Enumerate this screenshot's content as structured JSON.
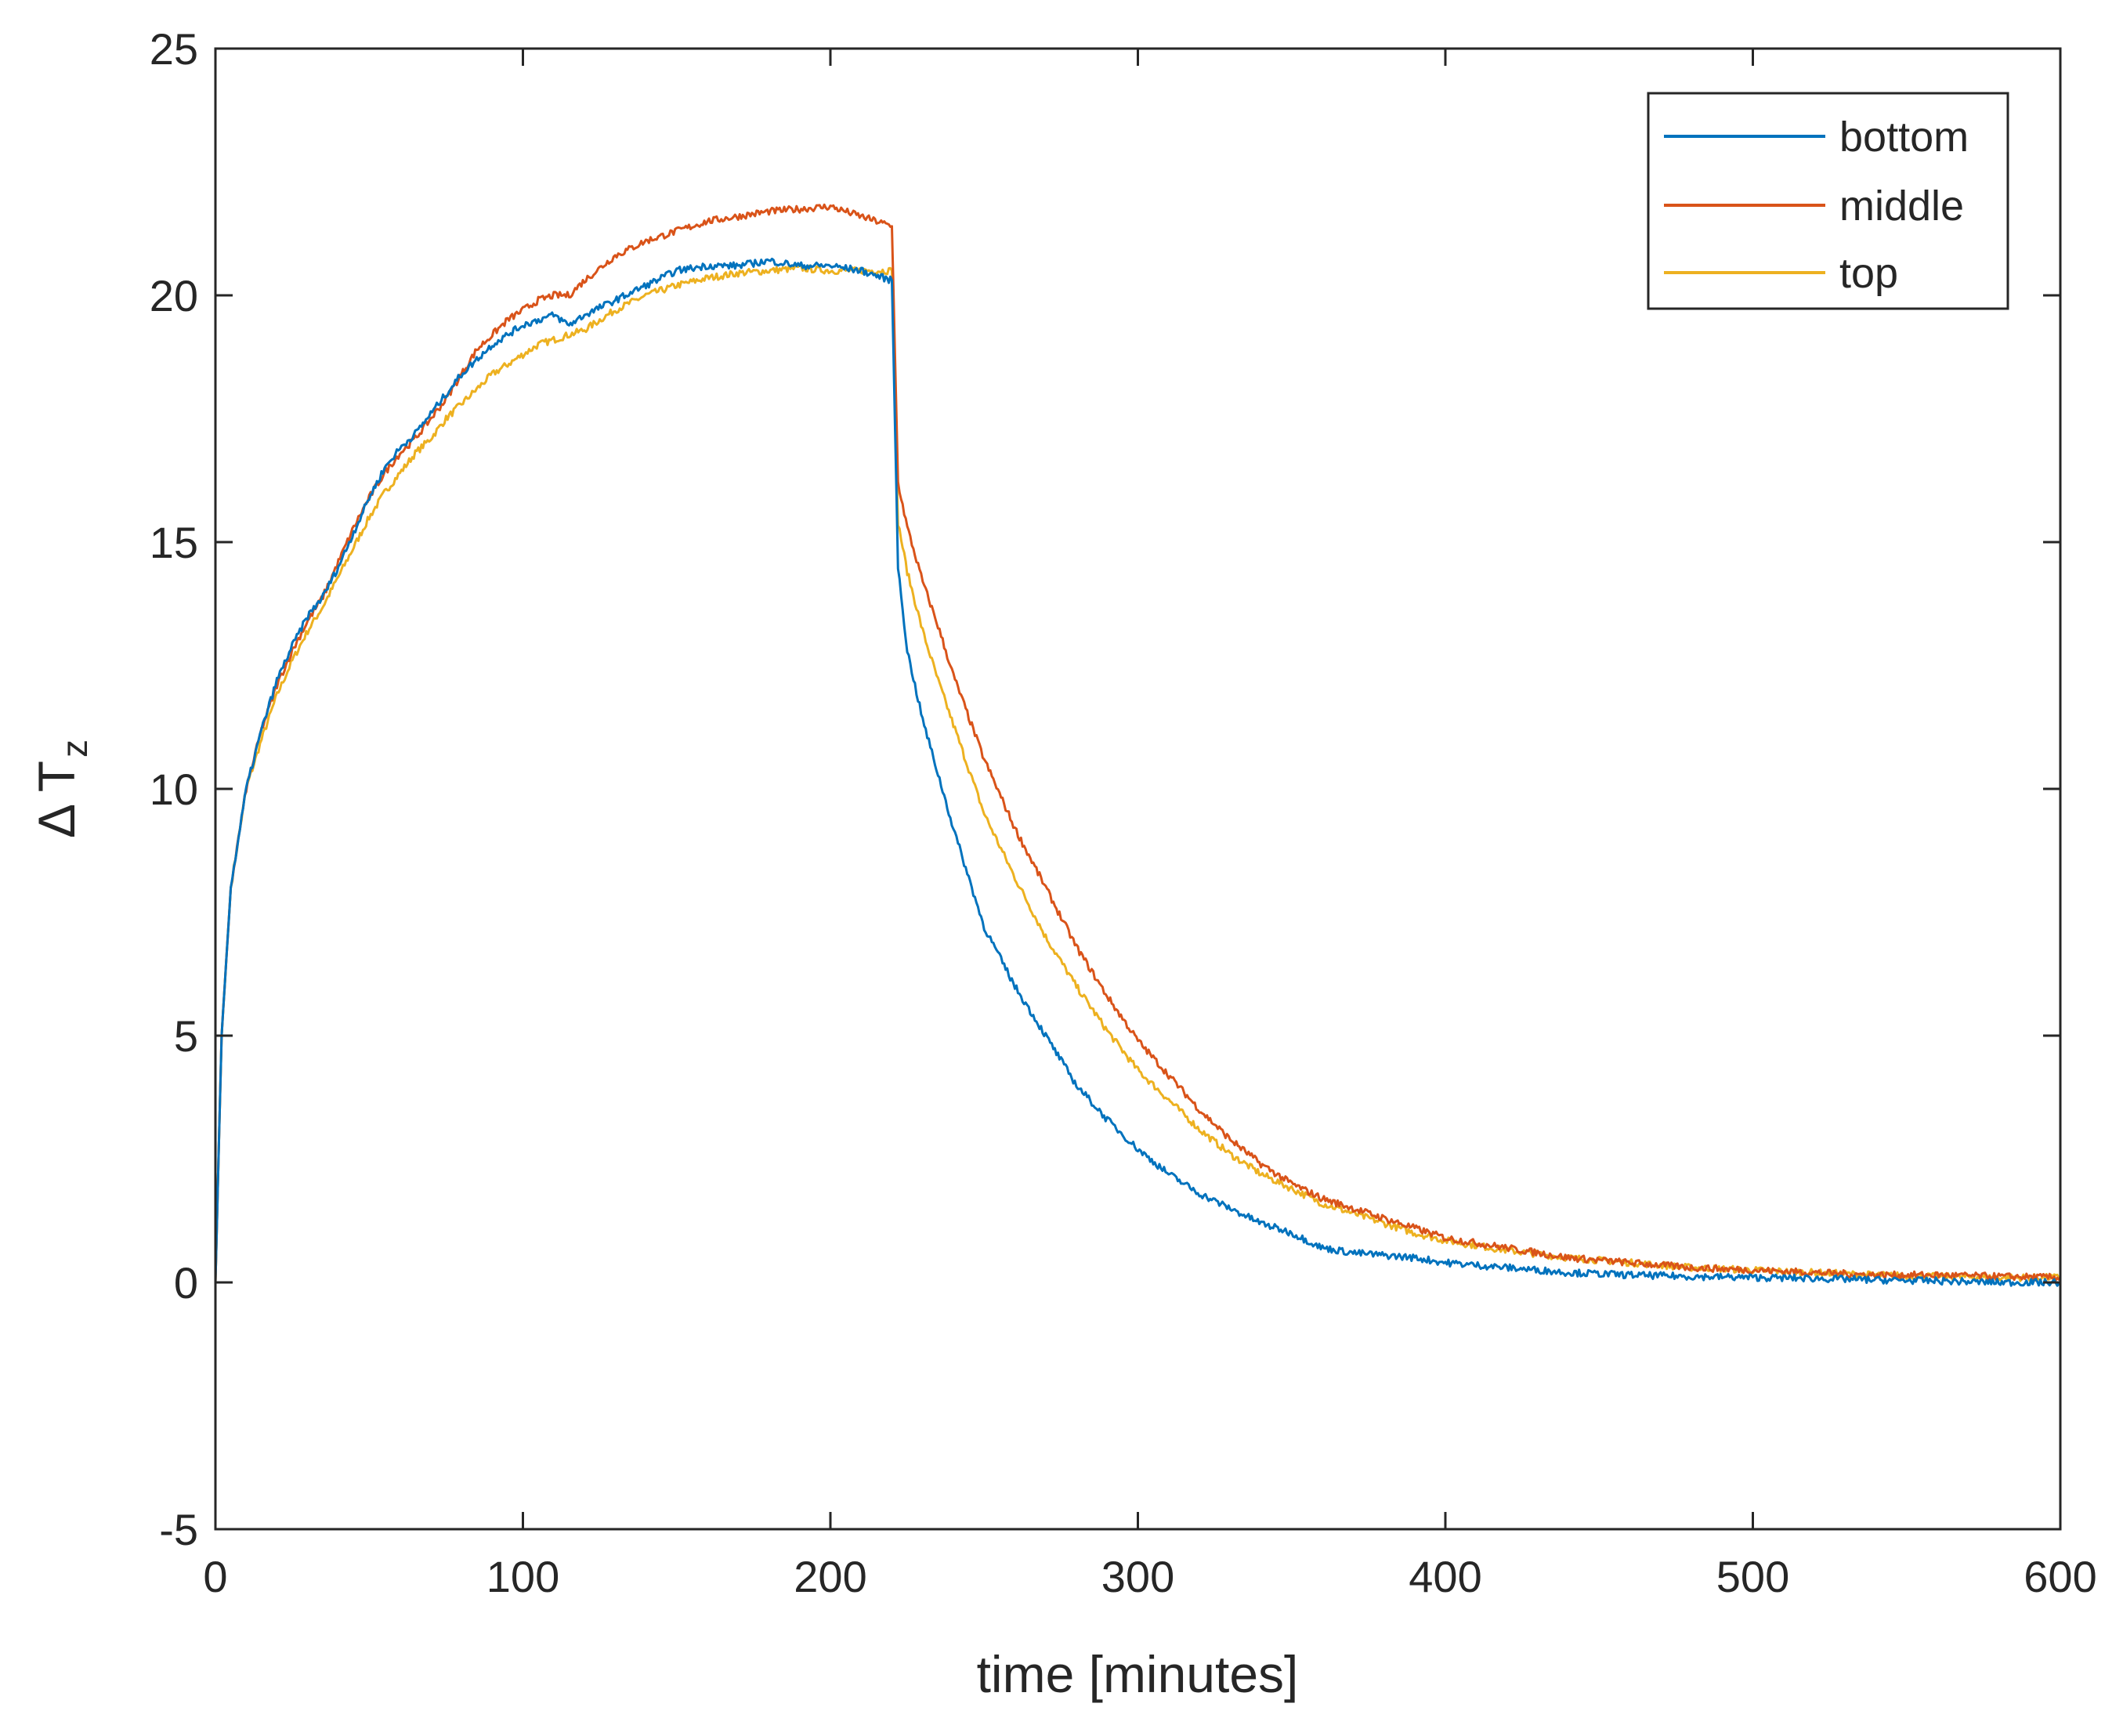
{
  "chart_data": {
    "type": "line",
    "title": "",
    "xlabel": "time [minutes]",
    "ylabel_main": "Δ T",
    "ylabel_sub": "z",
    "xlim": [
      0,
      600
    ],
    "ylim": [
      -5,
      25
    ],
    "xticks": [
      0,
      100,
      200,
      300,
      400,
      500,
      600
    ],
    "yticks": [
      -5,
      0,
      5,
      10,
      15,
      20,
      25
    ],
    "xtick_labels": [
      "0",
      "100",
      "200",
      "300",
      "400",
      "500",
      "600"
    ],
    "ytick_labels": [
      "-5",
      "0",
      "5",
      "10",
      "15",
      "20",
      "25"
    ],
    "grid": false,
    "box": true,
    "legend": {
      "position": "top-right",
      "box": true
    },
    "series": [
      {
        "name": "bottom",
        "color": "#0072BD",
        "points": [
          [
            0,
            0
          ],
          [
            2,
            5
          ],
          [
            5,
            8
          ],
          [
            10,
            10
          ],
          [
            15,
            11.2
          ],
          [
            20,
            12.2
          ],
          [
            25,
            12.9
          ],
          [
            30,
            13.5
          ],
          [
            35,
            13.9
          ],
          [
            40,
            14.5
          ],
          [
            45,
            15.2
          ],
          [
            50,
            15.9
          ],
          [
            55,
            16.5
          ],
          [
            60,
            16.9
          ],
          [
            65,
            17.2
          ],
          [
            70,
            17.6
          ],
          [
            75,
            18.0
          ],
          [
            80,
            18.4
          ],
          [
            85,
            18.7
          ],
          [
            90,
            19.0
          ],
          [
            95,
            19.2
          ],
          [
            100,
            19.4
          ],
          [
            105,
            19.5
          ],
          [
            110,
            19.6
          ],
          [
            115,
            19.4
          ],
          [
            120,
            19.6
          ],
          [
            130,
            19.9
          ],
          [
            140,
            20.2
          ],
          [
            150,
            20.5
          ],
          [
            160,
            20.6
          ],
          [
            170,
            20.6
          ],
          [
            180,
            20.7
          ],
          [
            190,
            20.6
          ],
          [
            200,
            20.6
          ],
          [
            210,
            20.5
          ],
          [
            220,
            20.3
          ],
          [
            222,
            14.5
          ],
          [
            225,
            12.8
          ],
          [
            230,
            11.4
          ],
          [
            235,
            10.3
          ],
          [
            240,
            9.2
          ],
          [
            250,
            7.2
          ],
          [
            260,
            6.0
          ],
          [
            270,
            5.0
          ],
          [
            280,
            4.0
          ],
          [
            290,
            3.3
          ],
          [
            300,
            2.7
          ],
          [
            310,
            2.2
          ],
          [
            320,
            1.8
          ],
          [
            330,
            1.5
          ],
          [
            340,
            1.2
          ],
          [
            350,
            1.0
          ],
          [
            360,
            0.7
          ],
          [
            370,
            0.6
          ],
          [
            380,
            0.55
          ],
          [
            390,
            0.5
          ],
          [
            400,
            0.4
          ],
          [
            420,
            0.3
          ],
          [
            440,
            0.2
          ],
          [
            460,
            0.15
          ],
          [
            480,
            0.12
          ],
          [
            500,
            0.1
          ],
          [
            520,
            0.08
          ],
          [
            540,
            0.05
          ],
          [
            560,
            0.03
          ],
          [
            580,
            0.0
          ],
          [
            600,
            0.0
          ]
        ]
      },
      {
        "name": "middle",
        "color": "#D95319",
        "points": [
          [
            0,
            0
          ],
          [
            2,
            5
          ],
          [
            5,
            8
          ],
          [
            10,
            10
          ],
          [
            15,
            11.2
          ],
          [
            20,
            12.1
          ],
          [
            25,
            12.8
          ],
          [
            30,
            13.4
          ],
          [
            35,
            13.9
          ],
          [
            40,
            14.6
          ],
          [
            45,
            15.3
          ],
          [
            50,
            15.9
          ],
          [
            55,
            16.4
          ],
          [
            60,
            16.8
          ],
          [
            65,
            17.1
          ],
          [
            70,
            17.5
          ],
          [
            75,
            17.9
          ],
          [
            80,
            18.4
          ],
          [
            85,
            18.9
          ],
          [
            90,
            19.2
          ],
          [
            95,
            19.5
          ],
          [
            100,
            19.7
          ],
          [
            105,
            19.9
          ],
          [
            110,
            20.0
          ],
          [
            115,
            20.0
          ],
          [
            120,
            20.3
          ],
          [
            130,
            20.8
          ],
          [
            140,
            21.1
          ],
          [
            150,
            21.3
          ],
          [
            160,
            21.5
          ],
          [
            170,
            21.6
          ],
          [
            180,
            21.7
          ],
          [
            190,
            21.75
          ],
          [
            200,
            21.8
          ],
          [
            210,
            21.6
          ],
          [
            220,
            21.4
          ],
          [
            222,
            16.2
          ],
          [
            225,
            15.3
          ],
          [
            230,
            14.2
          ],
          [
            235,
            13.3
          ],
          [
            240,
            12.3
          ],
          [
            250,
            10.6
          ],
          [
            260,
            9.2
          ],
          [
            270,
            8.0
          ],
          [
            280,
            6.8
          ],
          [
            290,
            5.8
          ],
          [
            300,
            4.9
          ],
          [
            310,
            4.2
          ],
          [
            320,
            3.5
          ],
          [
            330,
            2.9
          ],
          [
            340,
            2.4
          ],
          [
            350,
            2.0
          ],
          [
            360,
            1.7
          ],
          [
            370,
            1.5
          ],
          [
            380,
            1.3
          ],
          [
            390,
            1.1
          ],
          [
            400,
            0.9
          ],
          [
            420,
            0.7
          ],
          [
            440,
            0.5
          ],
          [
            460,
            0.4
          ],
          [
            480,
            0.3
          ],
          [
            500,
            0.25
          ],
          [
            520,
            0.2
          ],
          [
            540,
            0.15
          ],
          [
            560,
            0.15
          ],
          [
            580,
            0.12
          ],
          [
            600,
            0.1
          ]
        ]
      },
      {
        "name": "top",
        "color": "#EDB120",
        "points": [
          [
            0,
            0
          ],
          [
            2,
            5
          ],
          [
            5,
            8
          ],
          [
            10,
            10
          ],
          [
            15,
            11.0
          ],
          [
            20,
            11.9
          ],
          [
            25,
            12.6
          ],
          [
            30,
            13.2
          ],
          [
            35,
            13.7
          ],
          [
            40,
            14.3
          ],
          [
            45,
            14.9
          ],
          [
            50,
            15.5
          ],
          [
            55,
            16.0
          ],
          [
            60,
            16.4
          ],
          [
            65,
            16.8
          ],
          [
            70,
            17.1
          ],
          [
            75,
            17.5
          ],
          [
            80,
            17.8
          ],
          [
            85,
            18.1
          ],
          [
            90,
            18.4
          ],
          [
            95,
            18.6
          ],
          [
            100,
            18.8
          ],
          [
            105,
            19.0
          ],
          [
            110,
            19.1
          ],
          [
            115,
            19.2
          ],
          [
            120,
            19.3
          ],
          [
            130,
            19.7
          ],
          [
            140,
            20.0
          ],
          [
            150,
            20.2
          ],
          [
            160,
            20.35
          ],
          [
            170,
            20.45
          ],
          [
            180,
            20.5
          ],
          [
            190,
            20.55
          ],
          [
            200,
            20.5
          ],
          [
            210,
            20.5
          ],
          [
            220,
            20.5
          ],
          [
            222,
            15.4
          ],
          [
            225,
            14.4
          ],
          [
            230,
            13.2
          ],
          [
            235,
            12.2
          ],
          [
            240,
            11.3
          ],
          [
            250,
            9.5
          ],
          [
            260,
            8.2
          ],
          [
            270,
            7.0
          ],
          [
            280,
            6.0
          ],
          [
            290,
            5.1
          ],
          [
            300,
            4.3
          ],
          [
            310,
            3.7
          ],
          [
            320,
            3.1
          ],
          [
            330,
            2.6
          ],
          [
            340,
            2.2
          ],
          [
            350,
            1.9
          ],
          [
            360,
            1.6
          ],
          [
            370,
            1.4
          ],
          [
            380,
            1.2
          ],
          [
            390,
            1.0
          ],
          [
            400,
            0.85
          ],
          [
            420,
            0.65
          ],
          [
            440,
            0.5
          ],
          [
            460,
            0.4
          ],
          [
            480,
            0.3
          ],
          [
            500,
            0.25
          ],
          [
            520,
            0.2
          ],
          [
            540,
            0.15
          ],
          [
            560,
            0.12
          ],
          [
            580,
            0.1
          ],
          [
            600,
            0.1
          ]
        ]
      }
    ]
  }
}
